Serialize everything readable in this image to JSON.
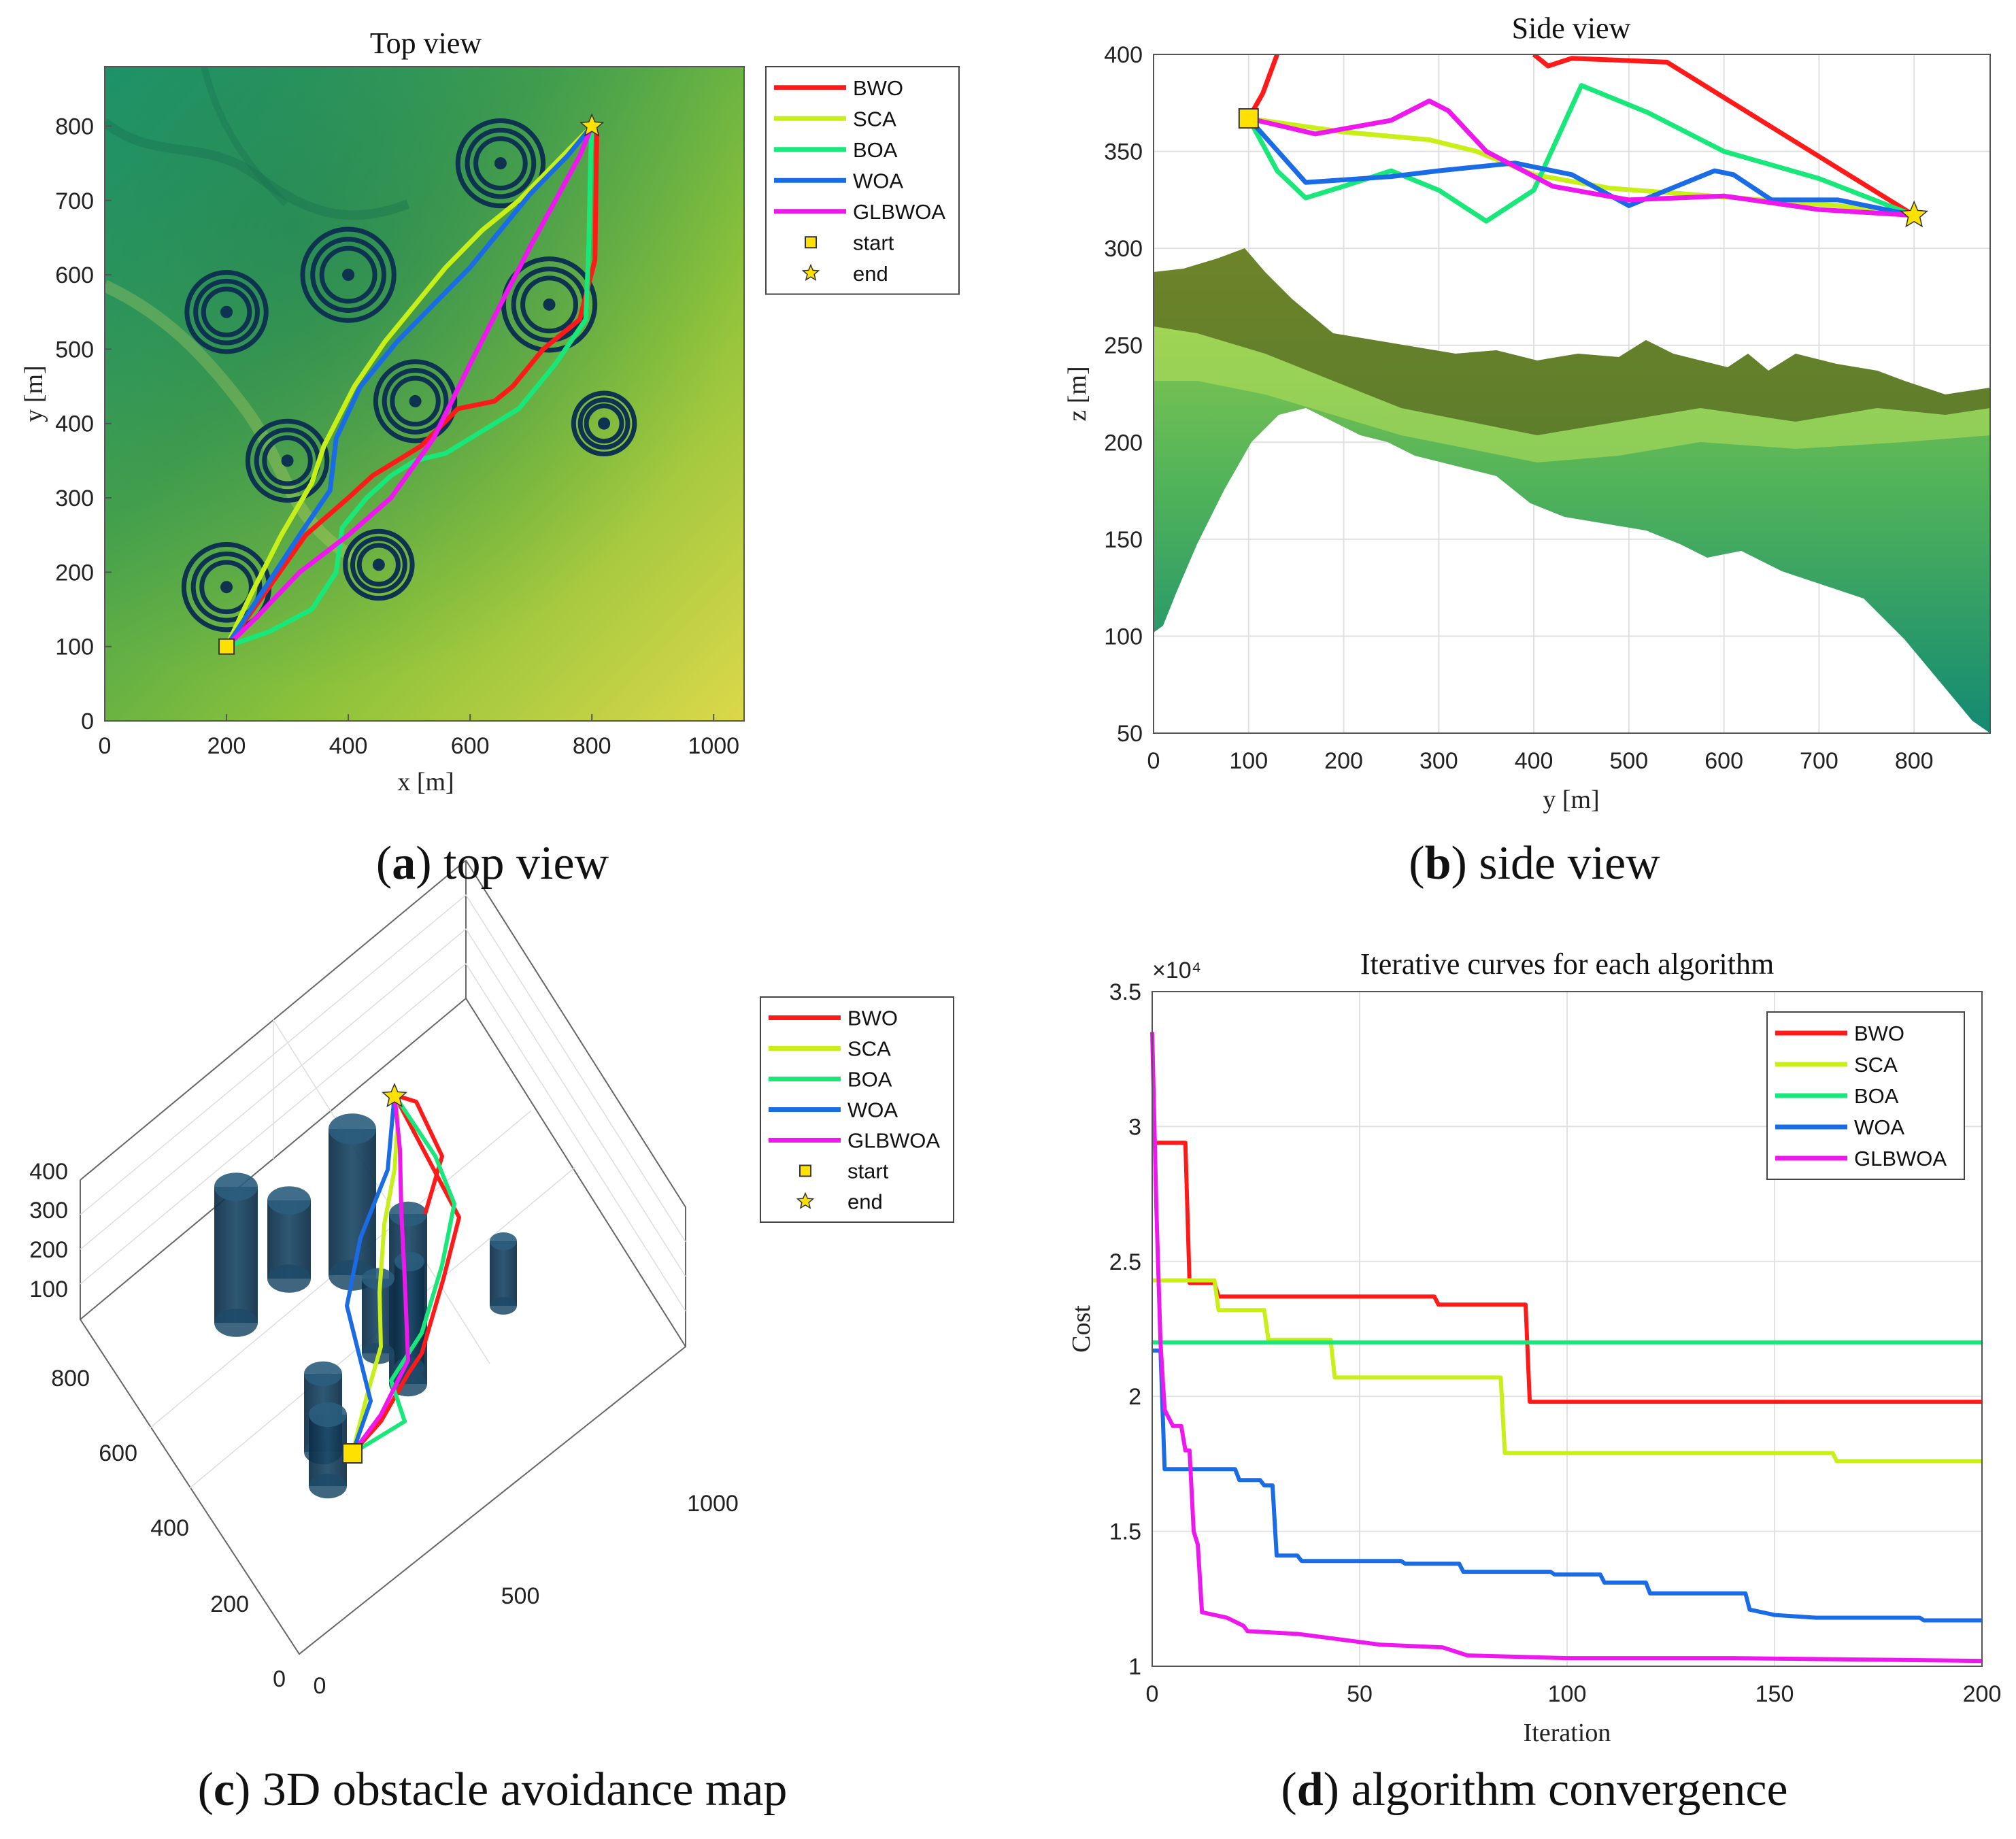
{
  "colors": {
    "BWO": "#ff1a1a",
    "SCA": "#c8f018",
    "BOA": "#17e879",
    "WOA": "#1a6be6",
    "GLBWOA": "#ee18ee",
    "obstacle": "#0e3350",
    "start_fill": "#ffe100",
    "end_fill": "#ffe100"
  },
  "legend": {
    "series": [
      "BWO",
      "SCA",
      "BOA",
      "WOA",
      "GLBWOA"
    ],
    "start": "start",
    "end": "end"
  },
  "captions": {
    "a_letter": "a",
    "a_text": "top view",
    "b_letter": "b",
    "b_text": "side view",
    "c_letter": "c",
    "c_text": "3D obstacle avoidance map",
    "d_letter": "d",
    "d_text": "algorithm convergence"
  },
  "chart_data": [
    {
      "id": "a",
      "type": "line",
      "title": "Top view",
      "xlabel": "x [m]",
      "ylabel": "y [m]",
      "xlim": [
        0,
        1050
      ],
      "ylim": [
        0,
        880
      ],
      "xticks": [
        0,
        200,
        400,
        600,
        800,
        1000
      ],
      "yticks": [
        0,
        100,
        200,
        300,
        400,
        500,
        600,
        700,
        800
      ],
      "background": "terrain elevation map (green-yellow)",
      "legend_position": "outside-right",
      "obstacles": [
        {
          "x": 200,
          "y": 550,
          "r": 65
        },
        {
          "x": 400,
          "y": 600,
          "r": 75
        },
        {
          "x": 650,
          "y": 750,
          "r": 70
        },
        {
          "x": 730,
          "y": 560,
          "r": 75
        },
        {
          "x": 510,
          "y": 430,
          "r": 65
        },
        {
          "x": 300,
          "y": 350,
          "r": 65
        },
        {
          "x": 820,
          "y": 400,
          "r": 50
        },
        {
          "x": 200,
          "y": 180,
          "r": 70
        },
        {
          "x": 450,
          "y": 210,
          "r": 55
        }
      ],
      "start": {
        "x": 200,
        "y": 100
      },
      "end": {
        "x": 800,
        "y": 800
      },
      "series": [
        {
          "name": "BWO",
          "points": [
            [
              200,
              100
            ],
            [
              270,
              180
            ],
            [
              330,
              250
            ],
            [
              400,
              300
            ],
            [
              440,
              330
            ],
            [
              520,
              370
            ],
            [
              580,
              420
            ],
            [
              640,
              430
            ],
            [
              670,
              450
            ],
            [
              720,
              500
            ],
            [
              780,
              540
            ],
            [
              805,
              620
            ],
            [
              808,
              790
            ],
            [
              800,
              800
            ]
          ]
        },
        {
          "name": "SCA",
          "points": [
            [
              200,
              100
            ],
            [
              240,
              170
            ],
            [
              290,
              250
            ],
            [
              340,
              320
            ],
            [
              360,
              370
            ],
            [
              410,
              450
            ],
            [
              460,
              510
            ],
            [
              510,
              560
            ],
            [
              560,
              610
            ],
            [
              620,
              660
            ],
            [
              680,
              700
            ],
            [
              740,
              750
            ],
            [
              800,
              800
            ]
          ]
        },
        {
          "name": "BOA",
          "points": [
            [
              200,
              100
            ],
            [
              270,
              120
            ],
            [
              340,
              150
            ],
            [
              380,
              200
            ],
            [
              390,
              260
            ],
            [
              430,
              300
            ],
            [
              470,
              330
            ],
            [
              510,
              350
            ],
            [
              560,
              360
            ],
            [
              620,
              390
            ],
            [
              680,
              420
            ],
            [
              740,
              480
            ],
            [
              790,
              540
            ],
            [
              795,
              640
            ],
            [
              798,
              760
            ],
            [
              800,
              800
            ]
          ]
        },
        {
          "name": "WOA",
          "points": [
            [
              200,
              100
            ],
            [
              240,
              150
            ],
            [
              280,
              200
            ],
            [
              320,
              250
            ],
            [
              370,
              310
            ],
            [
              380,
              380
            ],
            [
              420,
              450
            ],
            [
              480,
              510
            ],
            [
              540,
              560
            ],
            [
              600,
              610
            ],
            [
              650,
              660
            ],
            [
              700,
              710
            ],
            [
              760,
              760
            ],
            [
              800,
              800
            ]
          ]
        },
        {
          "name": "GLBWOA",
          "points": [
            [
              200,
              100
            ],
            [
              250,
              140
            ],
            [
              320,
              200
            ],
            [
              400,
              250
            ],
            [
              470,
              300
            ],
            [
              540,
              380
            ],
            [
              600,
              480
            ],
            [
              650,
              560
            ],
            [
              700,
              640
            ],
            [
              740,
              700
            ],
            [
              780,
              760
            ],
            [
              800,
              800
            ]
          ]
        }
      ]
    },
    {
      "id": "b",
      "type": "line",
      "title": "Side view",
      "xlabel": "y [m]",
      "ylabel": "z [m]",
      "xlim": [
        0,
        880
      ],
      "ylim": [
        50,
        400
      ],
      "xticks": [
        0,
        100,
        200,
        300,
        400,
        500,
        600,
        700,
        800
      ],
      "yticks": [
        50,
        100,
        150,
        200,
        250,
        300,
        350,
        400
      ],
      "background": "terrain surface profile",
      "grid": true,
      "start": {
        "x": 100,
        "y": 367
      },
      "end": {
        "x": 800,
        "y": 317
      },
      "series": [
        {
          "name": "BWO",
          "points": [
            [
              100,
              367
            ],
            [
              115,
              380
            ],
            [
              130,
              400
            ]
          ],
          "points2": [
            [
              400,
              400
            ],
            [
              415,
              394
            ],
            [
              440,
              398
            ],
            [
              540,
              396
            ],
            [
              800,
              317
            ]
          ]
        },
        {
          "name": "SCA",
          "points": [
            [
              100,
              367
            ],
            [
              200,
              360
            ],
            [
              290,
              356
            ],
            [
              340,
              350
            ],
            [
              400,
              338
            ],
            [
              480,
              331
            ],
            [
              560,
              328
            ],
            [
              640,
              325
            ],
            [
              720,
              322
            ],
            [
              800,
              317
            ]
          ]
        },
        {
          "name": "BOA",
          "points": [
            [
              100,
              367
            ],
            [
              130,
              340
            ],
            [
              160,
              326
            ],
            [
              200,
              332
            ],
            [
              250,
              340
            ],
            [
              300,
              330
            ],
            [
              350,
              314
            ],
            [
              400,
              330
            ],
            [
              450,
              384
            ],
            [
              520,
              370
            ],
            [
              600,
              350
            ],
            [
              700,
              336
            ],
            [
              800,
              317
            ]
          ]
        },
        {
          "name": "WOA",
          "points": [
            [
              100,
              367
            ],
            [
              160,
              334
            ],
            [
              250,
              337
            ],
            [
              300,
              340
            ],
            [
              380,
              344
            ],
            [
              440,
              338
            ],
            [
              500,
              322
            ],
            [
              560,
              334
            ],
            [
              590,
              340
            ],
            [
              610,
              338
            ],
            [
              650,
              325
            ],
            [
              720,
              325
            ],
            [
              800,
              317
            ]
          ]
        },
        {
          "name": "GLBWOA",
          "points": [
            [
              100,
              367
            ],
            [
              170,
              359
            ],
            [
              250,
              366
            ],
            [
              290,
              376
            ],
            [
              310,
              371
            ],
            [
              350,
              350
            ],
            [
              420,
              332
            ],
            [
              500,
              325
            ],
            [
              600,
              327
            ],
            [
              700,
              320
            ],
            [
              800,
              317
            ]
          ]
        }
      ]
    },
    {
      "id": "c",
      "type": "line",
      "projection": "3D",
      "xticks": [
        0,
        500,
        1000
      ],
      "yticks": [
        0,
        200,
        400,
        600,
        800
      ],
      "zticks": [
        100,
        200,
        300,
        400
      ],
      "legend_position": "outside-right",
      "series_names": [
        "BWO",
        "SCA",
        "BOA",
        "WOA",
        "GLBWOA"
      ]
    },
    {
      "id": "d",
      "type": "line",
      "title": "Iterative curves for each algorithm",
      "xlabel": "Iteration",
      "ylabel": "Cost",
      "y_exponent": "×10⁴",
      "xlim": [
        0,
        200
      ],
      "ylim": [
        1,
        3.5
      ],
      "xticks": [
        0,
        50,
        100,
        150,
        200
      ],
      "ytick_labels": [
        "1",
        "1.5",
        "2",
        "2.5",
        "3",
        "3.5"
      ],
      "grid": true,
      "legend_position": "top-right",
      "series": [
        {
          "name": "BWO",
          "points": [
            [
              0,
              2.94
            ],
            [
              8,
              2.94
            ],
            [
              9,
              2.42
            ],
            [
              15,
              2.42
            ],
            [
              16,
              2.37
            ],
            [
              68,
              2.37
            ],
            [
              69,
              2.34
            ],
            [
              90,
              2.34
            ],
            [
              91,
              1.98
            ],
            [
              200,
              1.98
            ]
          ]
        },
        {
          "name": "SCA",
          "points": [
            [
              0,
              2.43
            ],
            [
              15,
              2.43
            ],
            [
              16,
              2.32
            ],
            [
              27,
              2.32
            ],
            [
              28,
              2.21
            ],
            [
              43,
              2.21
            ],
            [
              44,
              2.07
            ],
            [
              84,
              2.07
            ],
            [
              85,
              1.79
            ],
            [
              164,
              1.79
            ],
            [
              165,
              1.76
            ],
            [
              200,
              1.76
            ]
          ]
        },
        {
          "name": "BOA",
          "points": [
            [
              0,
              2.2
            ],
            [
              200,
              2.2
            ]
          ]
        },
        {
          "name": "WOA",
          "points": [
            [
              0,
              2.17
            ],
            [
              2,
              2.17
            ],
            [
              3,
              1.73
            ],
            [
              20,
              1.73
            ],
            [
              21,
              1.69
            ],
            [
              26,
              1.69
            ],
            [
              27,
              1.67
            ],
            [
              29,
              1.67
            ],
            [
              30,
              1.41
            ],
            [
              35,
              1.41
            ],
            [
              36,
              1.39
            ],
            [
              60,
              1.39
            ],
            [
              61,
              1.38
            ],
            [
              74,
              1.38
            ],
            [
              75,
              1.35
            ],
            [
              96,
              1.35
            ],
            [
              97,
              1.34
            ],
            [
              108,
              1.34
            ],
            [
              109,
              1.31
            ],
            [
              119,
              1.31
            ],
            [
              120,
              1.27
            ],
            [
              143,
              1.27
            ],
            [
              144,
              1.21
            ],
            [
              150,
              1.19
            ],
            [
              160,
              1.18
            ],
            [
              185,
              1.18
            ],
            [
              186,
              1.17
            ],
            [
              200,
              1.17
            ]
          ]
        },
        {
          "name": "GLBWOA",
          "points": [
            [
              0,
              3.35
            ],
            [
              1,
              2.7
            ],
            [
              2,
              2.2
            ],
            [
              3,
              1.95
            ],
            [
              5,
              1.89
            ],
            [
              7,
              1.89
            ],
            [
              8,
              1.8
            ],
            [
              9,
              1.8
            ],
            [
              10,
              1.5
            ],
            [
              11,
              1.45
            ],
            [
              12,
              1.2
            ],
            [
              18,
              1.18
            ],
            [
              22,
              1.15
            ],
            [
              23,
              1.13
            ],
            [
              35,
              1.12
            ],
            [
              45,
              1.1
            ],
            [
              55,
              1.08
            ],
            [
              70,
              1.07
            ],
            [
              76,
              1.04
            ],
            [
              100,
              1.03
            ],
            [
              140,
              1.03
            ],
            [
              200,
              1.02
            ]
          ]
        }
      ]
    }
  ]
}
